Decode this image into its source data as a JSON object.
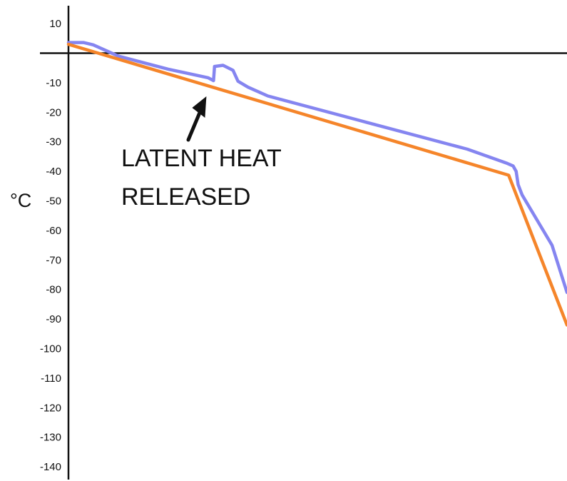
{
  "chart_data": {
    "type": "line",
    "title": "",
    "xlabel": "",
    "ylabel": "°C",
    "ylim": [
      -145,
      14
    ],
    "yticks": [
      10,
      -10,
      -20,
      -30,
      -40,
      -50,
      -60,
      -70,
      -80,
      -90,
      -100,
      -110,
      -120,
      -130,
      -140
    ],
    "grid": false,
    "x_axis_at": 0,
    "xlim": [
      0,
      100
    ],
    "series": [
      {
        "color": "#8585f0",
        "points": [
          [
            0,
            3.6
          ],
          [
            3,
            3.6
          ],
          [
            5,
            2.8
          ],
          [
            10,
            -1
          ],
          [
            20,
            -5.4
          ],
          [
            28,
            -8.3
          ],
          [
            29.1,
            -9.3
          ],
          [
            29.3,
            -4.5
          ],
          [
            31,
            -4.1
          ],
          [
            33,
            -5.8
          ],
          [
            34,
            -9.5
          ],
          [
            36,
            -11.5
          ],
          [
            40,
            -14.5
          ],
          [
            60,
            -23.5
          ],
          [
            80,
            -32.5
          ],
          [
            88,
            -37.3
          ],
          [
            89.2,
            -38.2
          ],
          [
            89.8,
            -40
          ],
          [
            90.2,
            -44.5
          ],
          [
            91,
            -48
          ],
          [
            97,
            -65
          ],
          [
            100,
            -81
          ]
        ]
      },
      {
        "color": "#f5852a",
        "points": [
          [
            0,
            3
          ],
          [
            88.3,
            -41.3
          ],
          [
            100,
            -92
          ]
        ]
      }
    ],
    "annotations": [
      {
        "lines": [
          "LATENT HEAT",
          "RELEASED"
        ],
        "arrow_to": [
          29.1,
          -9.3
        ]
      }
    ]
  }
}
